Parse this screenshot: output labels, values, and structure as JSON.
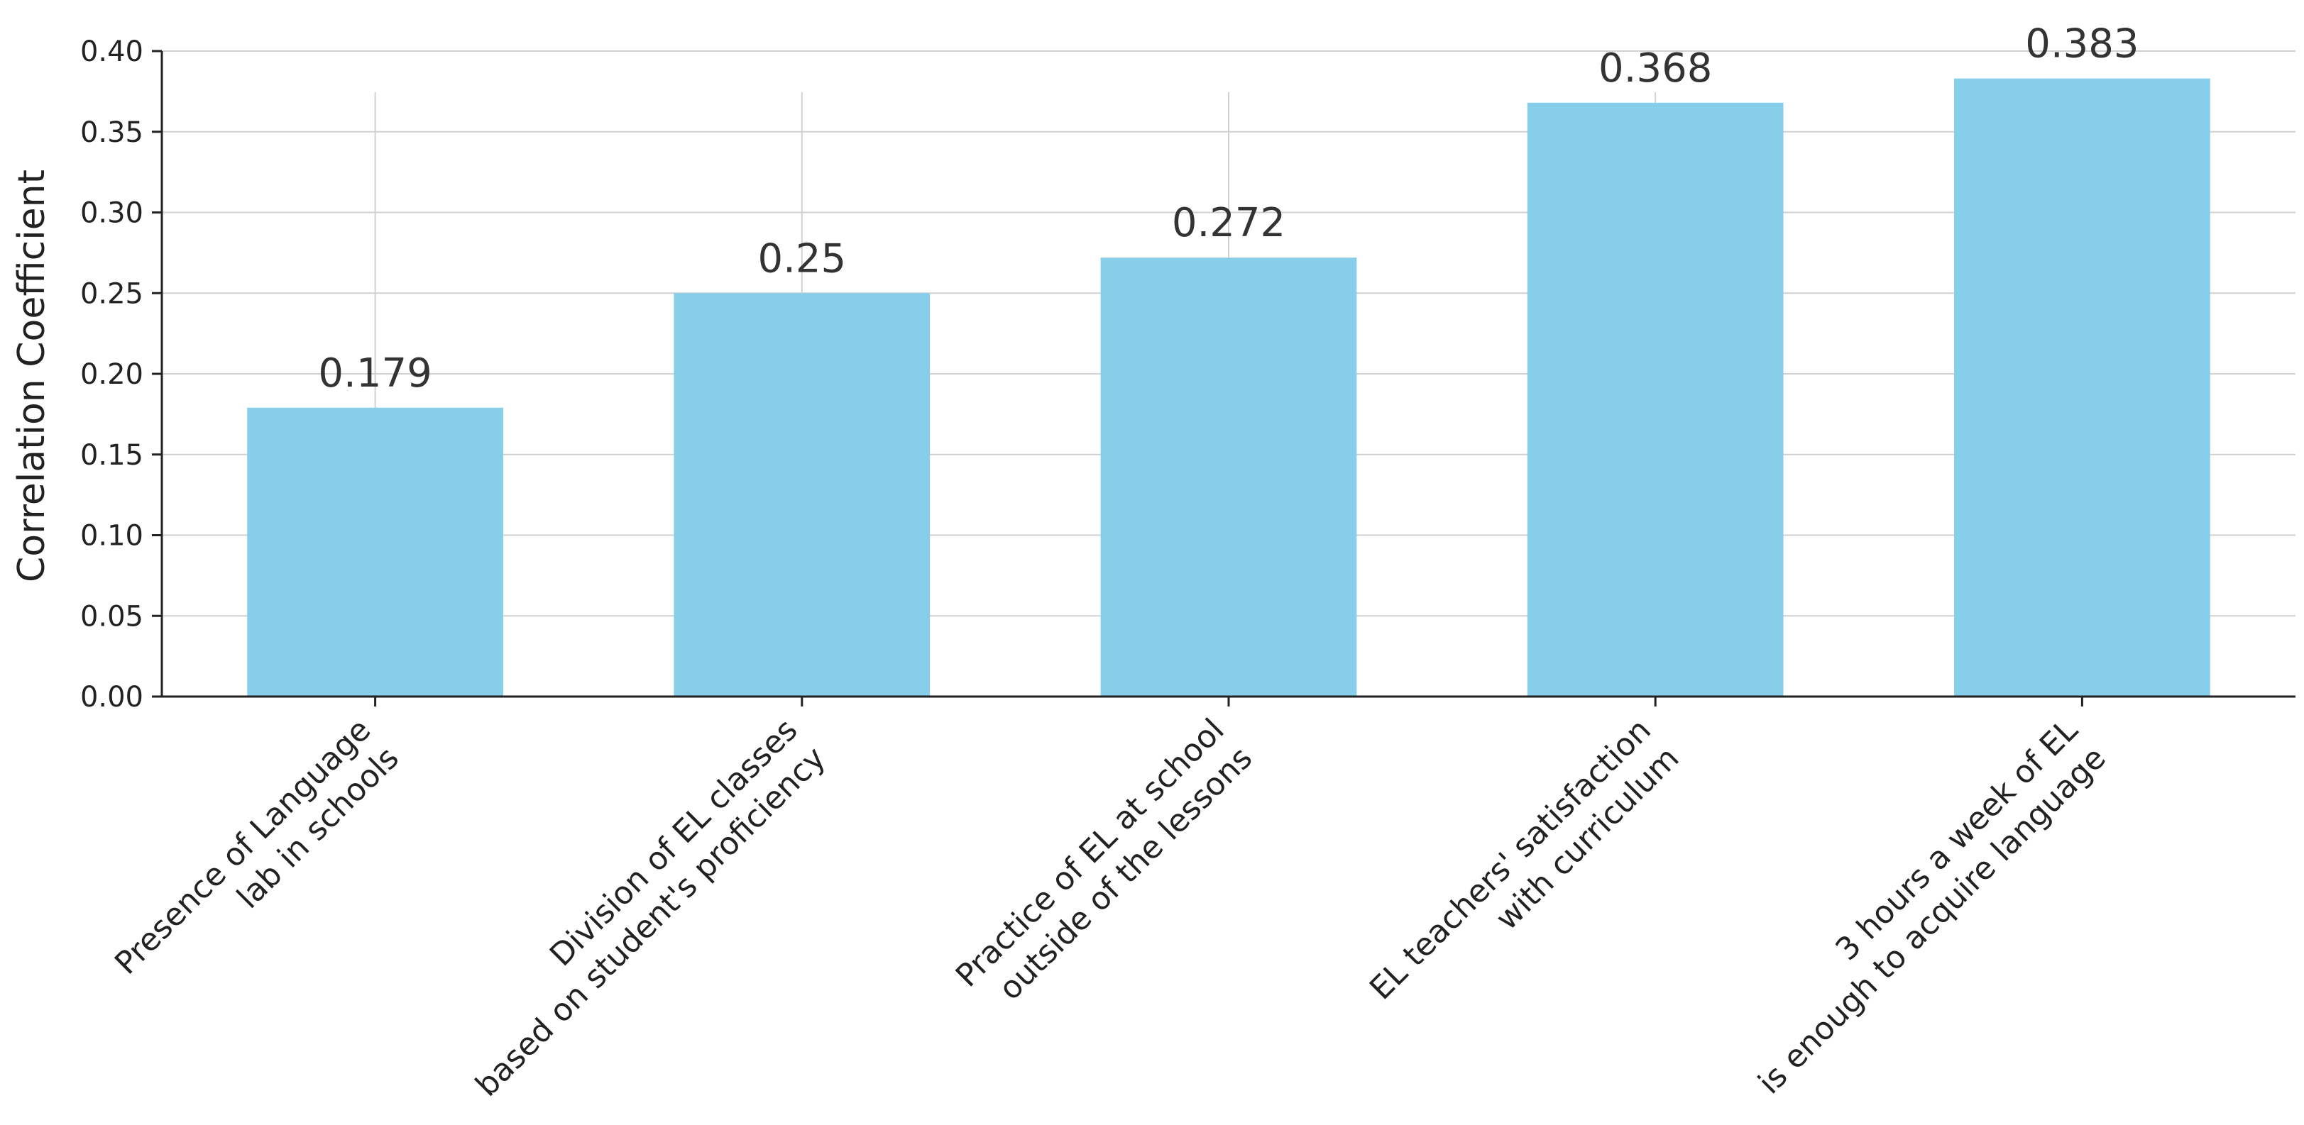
{
  "chart_data": {
    "type": "bar",
    "title": "",
    "xlabel": "",
    "ylabel": "Correlation Coefficient",
    "categories": [
      [
        "Presence of Language",
        "lab in schools"
      ],
      [
        "Division of EL classes",
        "based on student's proficiency"
      ],
      [
        "Practice of EL at school",
        "outside of the lessons"
      ],
      [
        "EL teachers' satisfaction",
        "with curriculum"
      ],
      [
        "3 hours a week of EL",
        "is enough to acquire language"
      ]
    ],
    "values": [
      0.179,
      0.25,
      0.272,
      0.368,
      0.383
    ],
    "value_labels": [
      "0.179",
      "0.25",
      "0.272",
      "0.368",
      "0.383"
    ],
    "ylim": [
      0,
      0.4
    ],
    "yticks": [
      "0.00",
      "0.05",
      "0.10",
      "0.15",
      "0.20",
      "0.25",
      "0.30",
      "0.35",
      "0.40"
    ],
    "grid": true,
    "bar_color": "#87CEEB",
    "grid_color": "#d0d0d0",
    "axis_color": "#222222"
  }
}
